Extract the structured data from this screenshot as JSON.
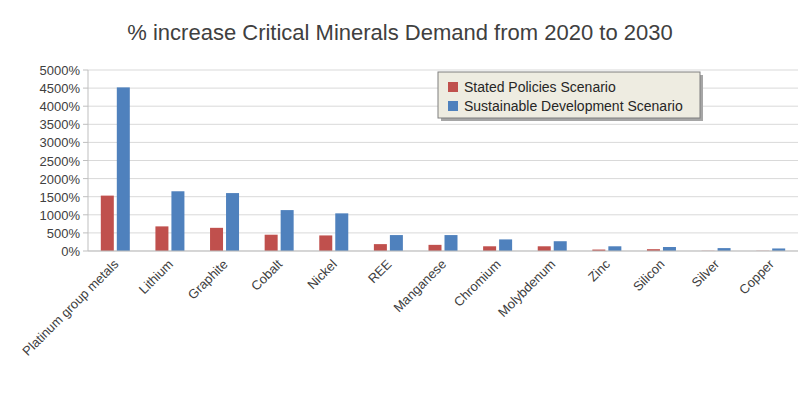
{
  "chart_data": {
    "type": "bar",
    "title": "% increase Critical Minerals Demand from 2020 to 2030",
    "categories": [
      "Platinum group metals",
      "Lithium",
      "Graphite",
      "Cobalt",
      "Nickel",
      "REE",
      "Manganese",
      "Chromium",
      "Molybdenum",
      "Zinc",
      "Silicon",
      "Silver",
      "Copper"
    ],
    "series": [
      {
        "name": "Stated Policies Scenario",
        "color": "#c0504d",
        "values": [
          1530,
          680,
          640,
          450,
          430,
          190,
          170,
          130,
          130,
          40,
          50,
          5,
          5
        ]
      },
      {
        "name": "Sustainable Development Scenario",
        "color": "#4f81bd",
        "values": [
          4520,
          1650,
          1600,
          1130,
          1040,
          440,
          440,
          320,
          270,
          130,
          110,
          80,
          70
        ]
      }
    ],
    "ylim": [
      0,
      5000
    ],
    "yticks": [
      {
        "value": 0,
        "label": "0%"
      },
      {
        "value": 500,
        "label": "500%"
      },
      {
        "value": 1000,
        "label": "1000%"
      },
      {
        "value": 1500,
        "label": "1500%"
      },
      {
        "value": 2000,
        "label": "2000%"
      },
      {
        "value": 2500,
        "label": "2500%"
      },
      {
        "value": 3000,
        "label": "3000%"
      },
      {
        "value": 3500,
        "label": "3500%"
      },
      {
        "value": 4000,
        "label": "4000%"
      },
      {
        "value": 4500,
        "label": "4500%"
      },
      {
        "value": 5000,
        "label": "5000%"
      }
    ],
    "grid": true,
    "legend": "top-right"
  }
}
